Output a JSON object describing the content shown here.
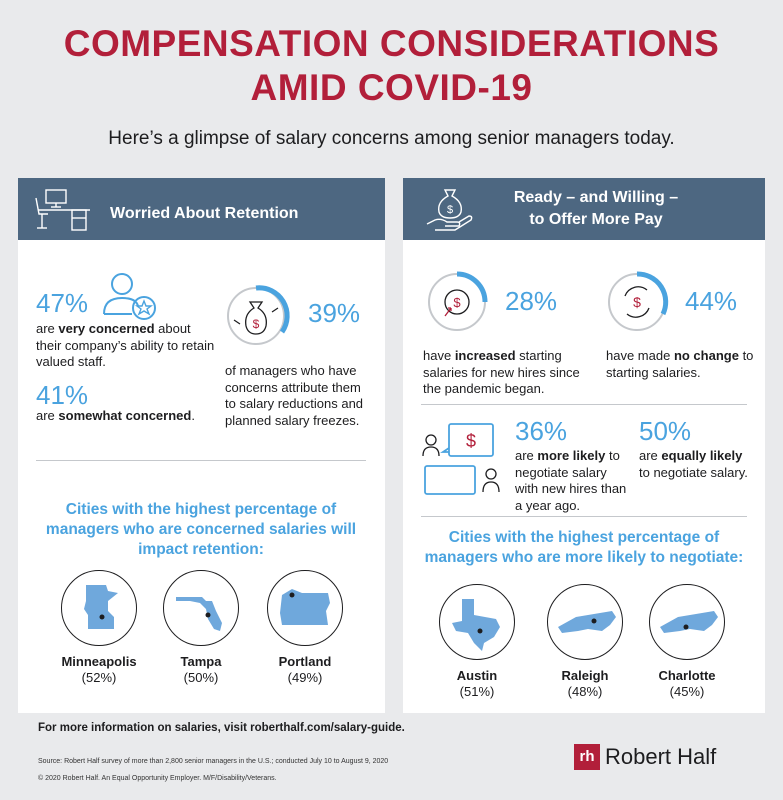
{
  "title_line1": "COMPENSATION CONSIDERATIONS",
  "title_line2": "AMID COVID-19",
  "subtitle": "Here’s a glimpse of salary concerns among senior managers today.",
  "left": {
    "heading": "Worried About Retention",
    "stat1": {
      "value": "47%",
      "pre": "are ",
      "bold": "very concerned",
      "post": " about their company’s ability to retain valued staff."
    },
    "stat2": {
      "value": "41%",
      "pre": "are ",
      "bold": "somewhat concerned",
      "post": "."
    },
    "stat3": {
      "value": "39%",
      "text": "of managers who have concerns attribute them to salary reductions and planned salary freezes."
    },
    "cities_title": "Cities with the highest percentage of managers who are concerned salaries will impact retention:",
    "cities": [
      {
        "name": "Minneapolis",
        "pct": "(52%)"
      },
      {
        "name": "Tampa",
        "pct": "(50%)"
      },
      {
        "name": "Portland",
        "pct": "(49%)"
      }
    ]
  },
  "right": {
    "heading_line1": "Ready – and Willing –",
    "heading_line2": "to Offer More Pay",
    "stat1": {
      "value": "28%",
      "pre": "have ",
      "bold": "increased",
      "post": " starting salaries for new hires since the pandemic began."
    },
    "stat2": {
      "value": "44%",
      "pre": "have made ",
      "bold": "no change",
      "post": " to starting salaries."
    },
    "stat3": {
      "value": "36%",
      "pre": "are ",
      "bold": "more likely",
      "post": " to negotiate salary with new hires than a year ago."
    },
    "stat4": {
      "value": "50%",
      "pre": "are ",
      "bold": "equally likely",
      "post": " to negotiate salary."
    },
    "cities_title": "Cities with the highest percentage of managers who are more likely to negotiate:",
    "cities": [
      {
        "name": "Austin",
        "pct": "(51%)"
      },
      {
        "name": "Raleigh",
        "pct": "(48%)"
      },
      {
        "name": "Charlotte",
        "pct": "(45%)"
      }
    ]
  },
  "footer": {
    "info": "For more information on salaries, visit roberthalf.com/salary-guide.",
    "source": "Source: Robert Half survey of more than 2,800 senior managers in the U.S.; conducted July 10 to August 9, 2020",
    "copyright": "© 2020 Robert Half. An Equal Opportunity Employer. M/F/Disability/Veterans.",
    "logo_mark": "rh",
    "logo_text": "Robert Half"
  },
  "colors": {
    "brand_red": "#b21f3a",
    "header_blue": "#4d6781",
    "accent_blue": "#4aa3df",
    "map_blue": "#6fa8dc"
  },
  "icons": [
    "desk-icon",
    "money-bag-hand-icon",
    "person-star-icon",
    "money-bag-arrows-icon",
    "dollar-up-icon",
    "dollar-cycle-icon",
    "chat-dollar-icon"
  ]
}
